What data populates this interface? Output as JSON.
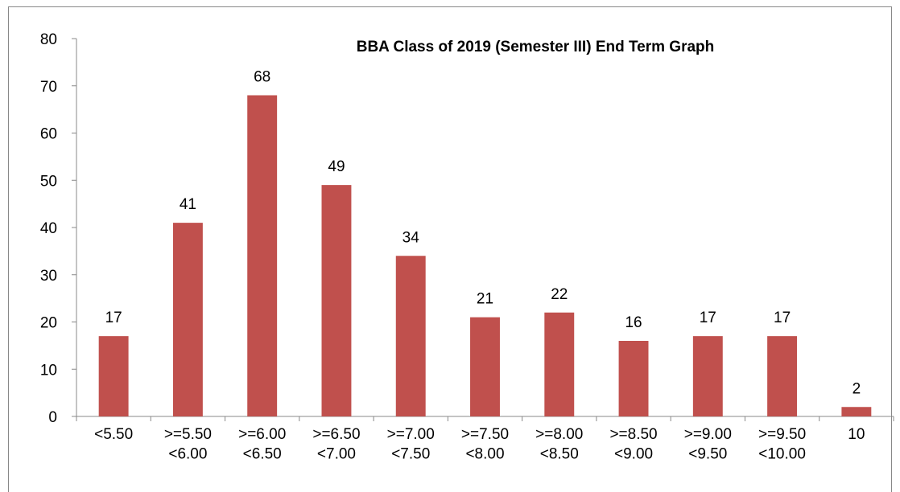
{
  "chart_data": {
    "type": "bar",
    "title": "BBA Class of 2019 (Semester III) End Term Graph",
    "categories": [
      "<5.50",
      ">=5.50\n<6.00",
      ">=6.00\n<6.50",
      ">=6.50\n<7.00",
      ">=7.00\n<7.50",
      ">=7.50\n<8.00",
      ">=8.00\n<8.50",
      ">=8.50\n<9.00",
      ">=9.00\n<9.50",
      ">=9.50\n<10.00",
      "10"
    ],
    "values": [
      17,
      41,
      68,
      49,
      34,
      21,
      22,
      16,
      17,
      17,
      2
    ],
    "color": "#c0504d",
    "ylim": [
      0,
      80
    ],
    "yticks": [
      0,
      10,
      20,
      30,
      40,
      50,
      60,
      70,
      80
    ],
    "grid": false
  }
}
